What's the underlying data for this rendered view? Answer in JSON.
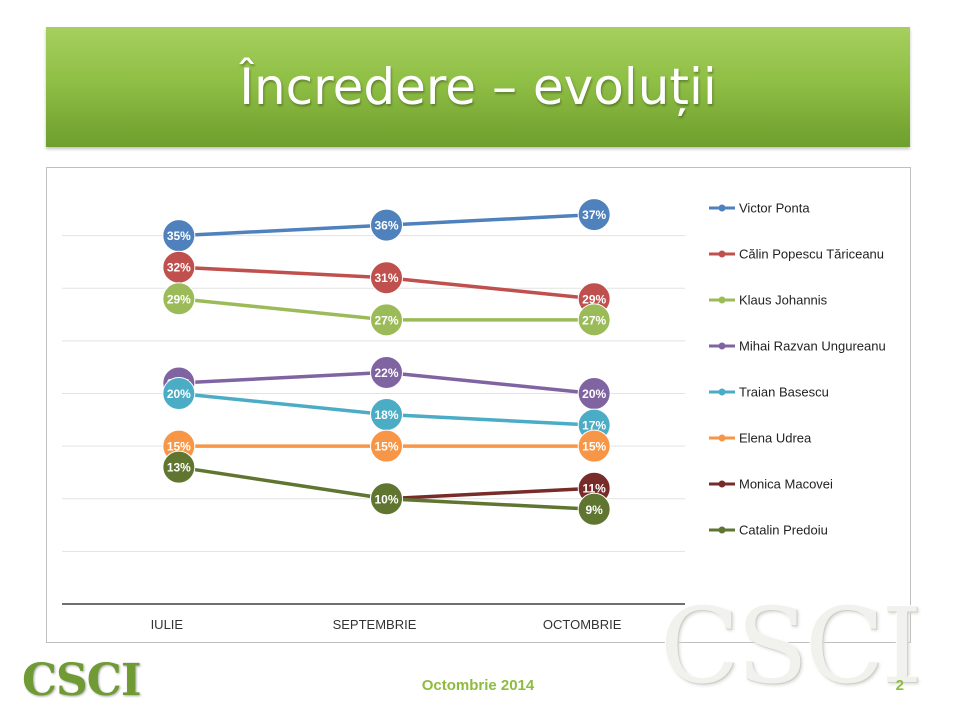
{
  "slide": {
    "title": "Încredere – evoluții",
    "footer_date": "Octombrie 2014",
    "page_number": "2",
    "logo_text": "CSCI",
    "watermark_text": "CSCI"
  },
  "chart_data": {
    "type": "line",
    "categories": [
      "IULIE",
      "SEPTEMBRIE",
      "OCTOMBRIE"
    ],
    "ylim": [
      0,
      40
    ],
    "grid": true,
    "legend_position": "right",
    "series": [
      {
        "name": "Victor Ponta",
        "color": "#4f81bd",
        "values": [
          35,
          36,
          37
        ],
        "labels": [
          "35%",
          "36%",
          "37%"
        ]
      },
      {
        "name": "Călin Popescu Tăriceanu",
        "color": "#c0504d",
        "values": [
          32,
          31,
          29
        ],
        "labels": [
          "32%",
          "31%",
          "29%"
        ]
      },
      {
        "name": "Klaus Johannis",
        "color": "#9bbb59",
        "values": [
          29,
          27,
          27
        ],
        "labels": [
          "29%",
          "27%",
          "27%"
        ]
      },
      {
        "name": "Mihai Razvan Ungureanu",
        "color": "#8064a2",
        "values": [
          21,
          22,
          20
        ],
        "labels": [
          "21%",
          "22%",
          "20%"
        ]
      },
      {
        "name": "Traian Basescu",
        "color": "#4bacc6",
        "values": [
          20,
          18,
          17
        ],
        "labels": [
          "20%",
          "18%",
          "17%"
        ]
      },
      {
        "name": "Elena Udrea",
        "color": "#f79646",
        "values": [
          15,
          15,
          15
        ],
        "labels": [
          "15%",
          "15%",
          "15%"
        ]
      },
      {
        "name": "Monica Macovei",
        "color": "#772c2a",
        "values": [
          null,
          10,
          11
        ],
        "labels": [
          "",
          "10%",
          "11%"
        ]
      },
      {
        "name": "Catalin Predoiu",
        "color": "#5f7530",
        "values": [
          13,
          10,
          9
        ],
        "labels": [
          "13%",
          "10%",
          "9%"
        ]
      }
    ]
  }
}
